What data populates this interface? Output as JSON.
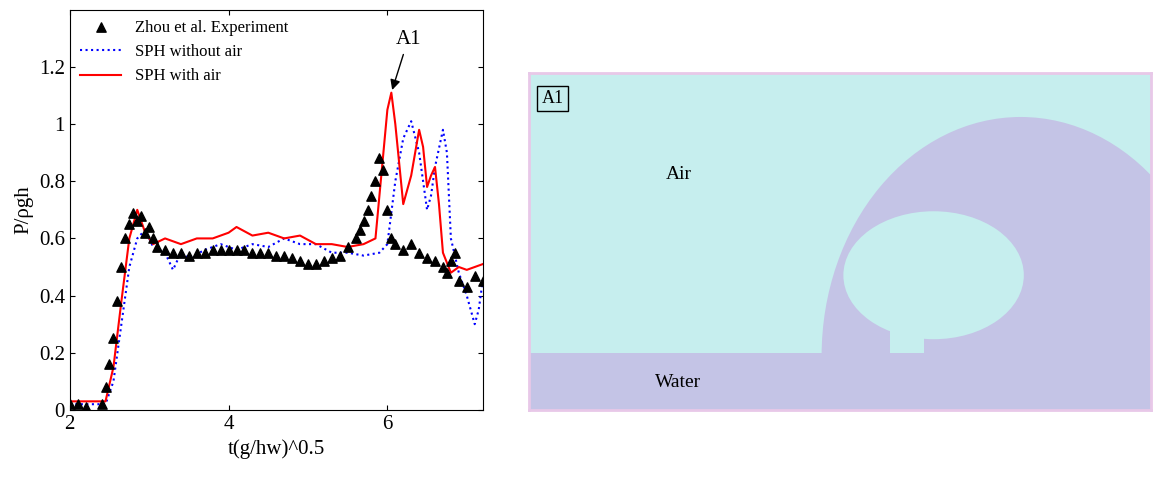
{
  "chart_data": {
    "type": "line",
    "x_label": "t(g/hw)^0.5",
    "y_label": "P/ρgh",
    "xlim": [
      2,
      7.2
    ],
    "xticks": [
      2,
      4,
      6
    ],
    "ylim": [
      0,
      1.4
    ],
    "yticks": [
      0,
      0.2,
      0.4,
      0.6,
      0.8,
      1,
      1.2
    ],
    "legend": "upper left",
    "annotations": [
      {
        "text": "A1",
        "x": 6.05,
        "y": 1.11
      }
    ],
    "series": [
      {
        "name": "Zhou et al. Experiment",
        "type": "scatter",
        "color": "#000000",
        "marker": "triangle",
        "x": [
          2.0,
          2.1,
          2.2,
          2.4,
          2.45,
          2.5,
          2.55,
          2.6,
          2.65,
          2.7,
          2.75,
          2.8,
          2.85,
          2.9,
          2.95,
          3.0,
          3.05,
          3.1,
          3.2,
          3.3,
          3.4,
          3.5,
          3.6,
          3.7,
          3.8,
          3.9,
          4.0,
          4.1,
          4.2,
          4.3,
          4.4,
          4.5,
          4.6,
          4.7,
          4.8,
          4.9,
          5.0,
          5.1,
          5.2,
          5.3,
          5.4,
          5.5,
          5.6,
          5.65,
          5.7,
          5.75,
          5.8,
          5.85,
          5.9,
          5.95,
          6.0,
          6.05,
          6.1,
          6.2,
          6.3,
          6.4,
          6.5,
          6.6,
          6.7,
          6.75,
          6.8,
          6.85,
          6.9,
          7.0,
          7.1,
          7.2
        ],
        "values": [
          0.02,
          0.02,
          0.01,
          0.02,
          0.08,
          0.16,
          0.25,
          0.38,
          0.5,
          0.6,
          0.65,
          0.69,
          0.66,
          0.68,
          0.62,
          0.64,
          0.6,
          0.57,
          0.56,
          0.55,
          0.55,
          0.54,
          0.55,
          0.55,
          0.56,
          0.56,
          0.56,
          0.56,
          0.56,
          0.55,
          0.55,
          0.55,
          0.54,
          0.54,
          0.53,
          0.52,
          0.51,
          0.51,
          0.52,
          0.53,
          0.54,
          0.57,
          0.6,
          0.63,
          0.66,
          0.7,
          0.75,
          0.8,
          0.88,
          0.84,
          0.7,
          0.6,
          0.58,
          0.56,
          0.58,
          0.55,
          0.53,
          0.52,
          0.5,
          0.48,
          0.52,
          0.55,
          0.45,
          0.43,
          0.47,
          0.45
        ]
      },
      {
        "name": "SPH without air",
        "type": "line",
        "color": "#0000ff",
        "line_style": "dotted",
        "x": [
          2.0,
          2.45,
          2.55,
          2.65,
          2.75,
          2.85,
          2.95,
          3.05,
          3.2,
          3.3,
          3.4,
          3.5,
          3.7,
          3.9,
          4.1,
          4.3,
          4.5,
          4.7,
          4.9,
          5.1,
          5.3,
          5.5,
          5.7,
          5.9,
          6.0,
          6.1,
          6.2,
          6.3,
          6.4,
          6.5,
          6.55,
          6.6,
          6.7,
          6.75,
          6.8,
          6.9,
          7.0,
          7.1,
          7.15,
          7.2
        ],
        "values": [
          0.02,
          0.02,
          0.1,
          0.3,
          0.5,
          0.6,
          0.63,
          0.57,
          0.55,
          0.49,
          0.55,
          0.53,
          0.56,
          0.58,
          0.56,
          0.58,
          0.57,
          0.6,
          0.58,
          0.58,
          0.55,
          0.55,
          0.54,
          0.55,
          0.58,
          0.8,
          0.95,
          1.01,
          0.9,
          0.7,
          0.75,
          0.85,
          0.98,
          0.9,
          0.6,
          0.48,
          0.4,
          0.3,
          0.35,
          0.45
        ]
      },
      {
        "name": "SPH with air",
        "type": "line",
        "color": "#ff0000",
        "line_style": "solid",
        "x": [
          2.0,
          2.3,
          2.45,
          2.55,
          2.65,
          2.75,
          2.85,
          2.95,
          3.05,
          3.2,
          3.4,
          3.6,
          3.8,
          4.0,
          4.1,
          4.3,
          4.5,
          4.7,
          4.9,
          5.1,
          5.3,
          5.5,
          5.7,
          5.85,
          5.9,
          6.0,
          6.05,
          6.1,
          6.2,
          6.3,
          6.4,
          6.45,
          6.5,
          6.55,
          6.6,
          6.65,
          6.7,
          6.8,
          6.9,
          7.0,
          7.1,
          7.2
        ],
        "values": [
          0.03,
          0.03,
          0.03,
          0.15,
          0.38,
          0.6,
          0.7,
          0.62,
          0.58,
          0.6,
          0.58,
          0.6,
          0.6,
          0.62,
          0.64,
          0.61,
          0.62,
          0.6,
          0.61,
          0.58,
          0.58,
          0.57,
          0.58,
          0.6,
          0.75,
          1.05,
          1.11,
          1.0,
          0.72,
          0.82,
          0.98,
          0.92,
          0.78,
          0.82,
          0.85,
          0.72,
          0.55,
          0.48,
          0.5,
          0.49,
          0.5,
          0.51
        ]
      }
    ]
  },
  "snapshot": {
    "label": "A1",
    "regions": {
      "air": "Air",
      "water": "Water"
    }
  }
}
